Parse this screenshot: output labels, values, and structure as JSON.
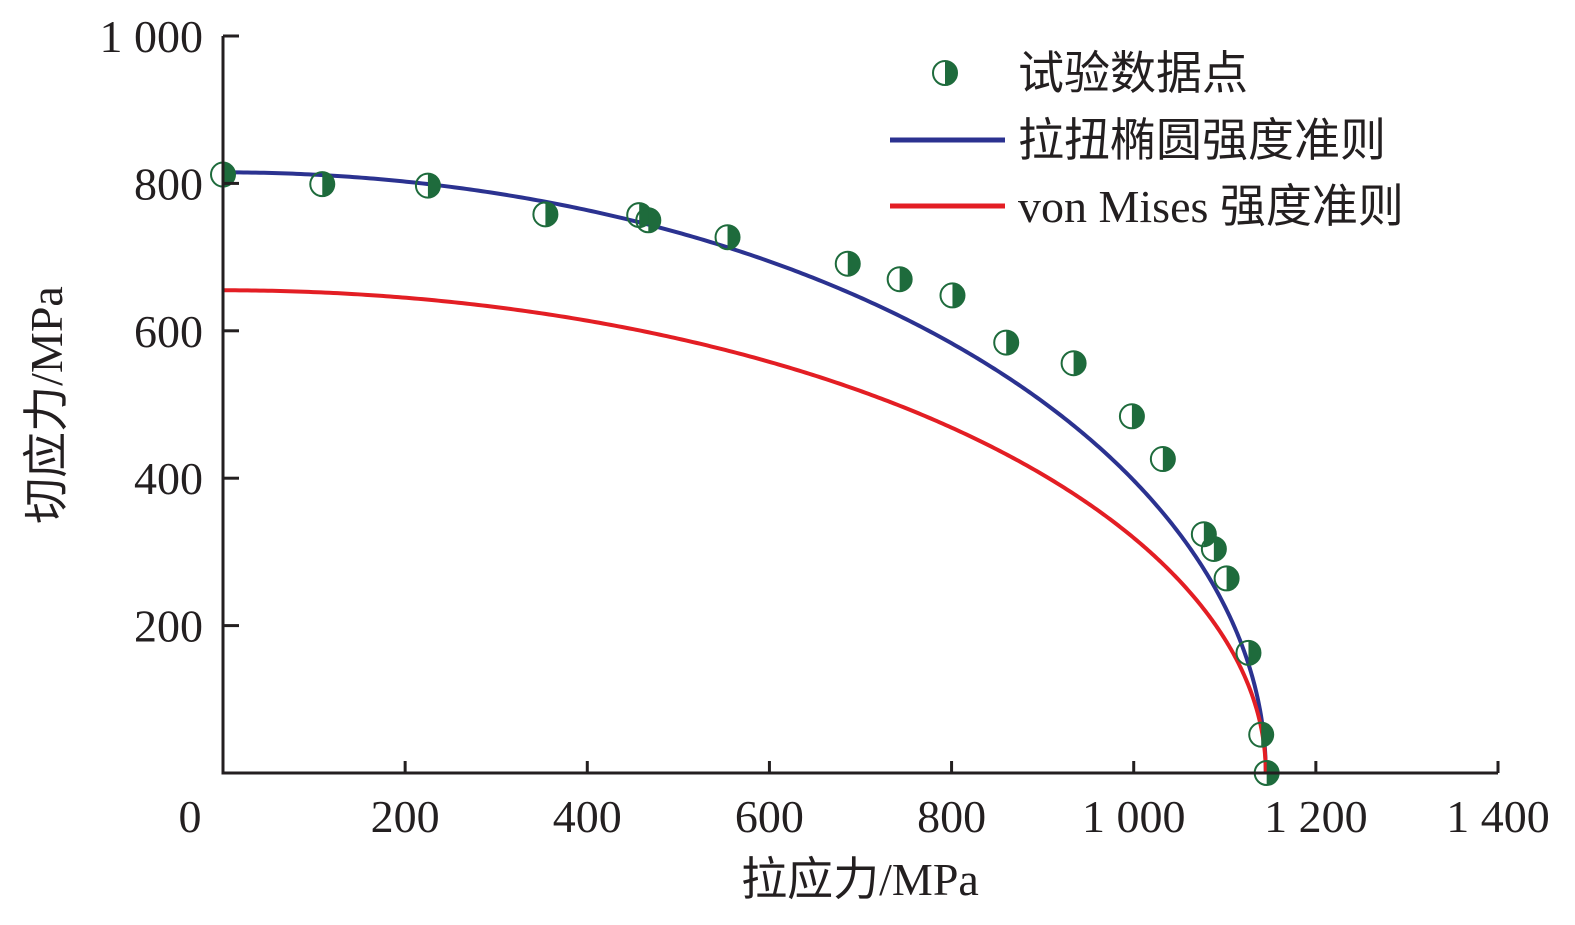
{
  "chart_data": {
    "type": "scatter",
    "title": "",
    "xlabel": "拉应力/MPa",
    "ylabel": "切应力/MPa",
    "xlim": [
      0,
      1400
    ],
    "ylim": [
      0,
      1000
    ],
    "xticks": [
      0,
      200,
      400,
      600,
      800,
      1000,
      1200,
      1400
    ],
    "xtick_labels": [
      "0",
      "200",
      "400",
      "600",
      "800",
      "1 000",
      "1 200",
      "1 400"
    ],
    "yticks": [
      200,
      400,
      600,
      800,
      1000
    ],
    "ytick_labels": [
      "200",
      "400",
      "600",
      "800",
      "1 000"
    ],
    "grid": false,
    "legend_position": "top-right",
    "series": [
      {
        "name": "试验数据点",
        "kind": "scatter",
        "marker": "half-filled-circle",
        "color": "#1e6b3c",
        "points": [
          [
            0,
            812
          ],
          [
            109,
            799
          ],
          [
            225,
            797
          ],
          [
            354,
            758
          ],
          [
            457,
            757
          ],
          [
            467,
            750
          ],
          [
            554,
            727
          ],
          [
            686,
            691
          ],
          [
            743,
            670
          ],
          [
            801,
            648
          ],
          [
            860,
            584
          ],
          [
            934,
            556
          ],
          [
            998,
            484
          ],
          [
            1032,
            426
          ],
          [
            1077,
            324
          ],
          [
            1088,
            304
          ],
          [
            1102,
            264
          ],
          [
            1126,
            163
          ],
          [
            1140,
            52
          ],
          [
            1146,
            0
          ]
        ]
      },
      {
        "name": "拉扭椭圆强度准则",
        "kind": "curve",
        "color": "#2b3290",
        "equation": "(σ/σ0)^2 + (τ/τ0)^2 = 1",
        "sigma0": 1145,
        "tau0": 815
      },
      {
        "name": "von Mises 强度准则",
        "kind": "curve",
        "color": "#e31e24",
        "equation": "σ^2 + 3τ^2 = σ0^2",
        "sigma0": 1145,
        "tau0": 655
      }
    ]
  }
}
